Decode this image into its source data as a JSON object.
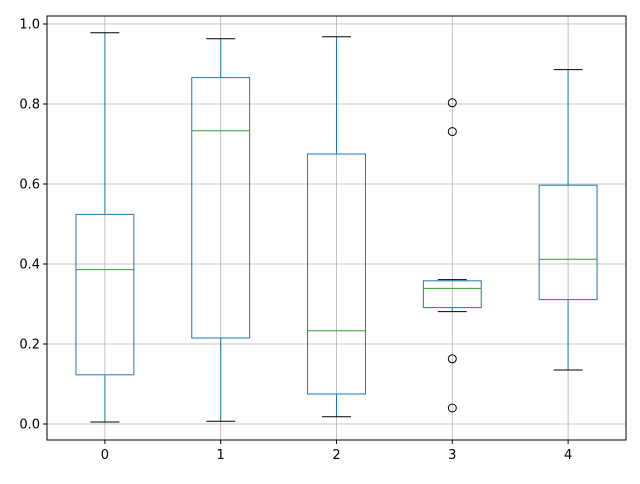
{
  "chart_data": {
    "type": "box",
    "title": "",
    "xlabel": "",
    "ylabel": "",
    "categories": [
      "0",
      "1",
      "2",
      "3",
      "4"
    ],
    "ylim": [
      -0.04,
      1.02
    ],
    "yticks": [
      0.0,
      0.2,
      0.4,
      0.6,
      0.8,
      1.0
    ],
    "ytick_labels": [
      "0.0",
      "0.2",
      "0.4",
      "0.6",
      "0.8",
      "1.0"
    ],
    "grid": true,
    "legend": "none",
    "colors": {
      "box": "#1f77b4",
      "median": "#2ca02c",
      "whisker_cap": "#000000",
      "grid": "#b0b0b0",
      "outlier": "#000000"
    },
    "boxes": [
      {
        "label": "0",
        "whisker_low": 0.005,
        "q1": 0.123,
        "median": 0.386,
        "q3": 0.524,
        "whisker_high": 0.978,
        "outliers": []
      },
      {
        "label": "1",
        "whisker_low": 0.007,
        "q1": 0.215,
        "median": 0.733,
        "q3": 0.866,
        "whisker_high": 0.963,
        "outliers": []
      },
      {
        "label": "2",
        "whisker_low": 0.018,
        "q1": 0.075,
        "median": 0.233,
        "q3": 0.675,
        "whisker_high": 0.968,
        "outliers": []
      },
      {
        "label": "3",
        "whisker_low": 0.281,
        "q1": 0.291,
        "median": 0.339,
        "q3": 0.358,
        "whisker_high": 0.361,
        "outliers": [
          0.803,
          0.731,
          0.163,
          0.04
        ]
      },
      {
        "label": "4",
        "whisker_low": 0.135,
        "q1": 0.311,
        "median": 0.412,
        "q3": 0.597,
        "whisker_high": 0.886,
        "outliers": []
      }
    ]
  }
}
